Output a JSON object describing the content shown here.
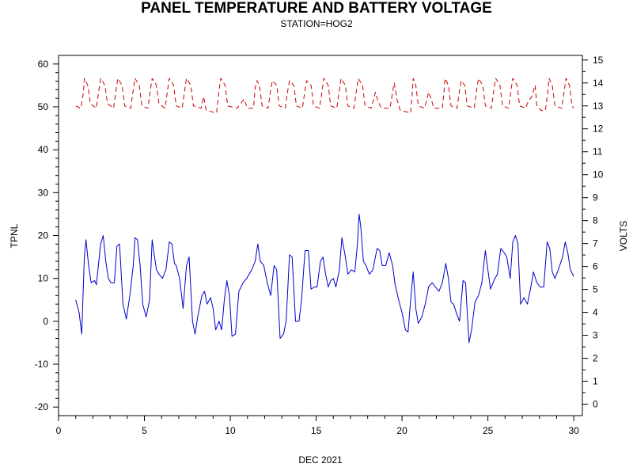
{
  "chart_data": {
    "type": "line",
    "title": "PANEL TEMPERATURE AND BATTERY VOLTAGE",
    "subtitle": "STATION=HOG2",
    "xlabel": "DEC 2021",
    "ylabel_left": "TPNL",
    "ylabel_right": "VOLTS",
    "xlim": [
      0,
      30.5
    ],
    "ylim_left": [
      -22,
      62
    ],
    "ylim_right": [
      -0.5,
      15.2
    ],
    "x_ticks": [
      0,
      5,
      10,
      15,
      20,
      25,
      30
    ],
    "x_tick_labels": [
      "0",
      "5",
      "10",
      "15",
      "20",
      "25",
      "30"
    ],
    "y_left_ticks": [
      -20,
      -10,
      0,
      10,
      20,
      30,
      40,
      50,
      60
    ],
    "y_left_tick_labels": [
      "-20",
      "-10",
      "0",
      "10",
      "20",
      "30",
      "40",
      "50",
      "60"
    ],
    "y_right_ticks": [
      0,
      1,
      2,
      3,
      4,
      5,
      6,
      7,
      8,
      9,
      10,
      11,
      12,
      13,
      14,
      15
    ],
    "y_right_tick_labels": [
      "0",
      "1",
      "2",
      "3",
      "4",
      "5",
      "6",
      "7",
      "8",
      "9",
      "10",
      "11",
      "12",
      "13",
      "14",
      "15"
    ],
    "grid": false,
    "legend": "none",
    "series": [
      {
        "axis": "left",
        "color": "#0000cc",
        "style": "solid",
        "points": [
          [
            1.0,
            5
          ],
          [
            1.2,
            2
          ],
          [
            1.35,
            -3
          ],
          [
            1.5,
            15
          ],
          [
            1.6,
            19
          ],
          [
            1.75,
            13
          ],
          [
            1.9,
            9
          ],
          [
            2.1,
            9.5
          ],
          [
            2.2,
            8.5
          ],
          [
            2.45,
            18
          ],
          [
            2.6,
            20
          ],
          [
            2.75,
            14
          ],
          [
            2.9,
            10
          ],
          [
            3.05,
            9
          ],
          [
            3.25,
            9
          ],
          [
            3.4,
            17.5
          ],
          [
            3.55,
            18
          ],
          [
            3.75,
            4
          ],
          [
            3.95,
            0.5
          ],
          [
            4.15,
            6
          ],
          [
            4.35,
            13
          ],
          [
            4.45,
            19.5
          ],
          [
            4.6,
            19
          ],
          [
            4.75,
            13
          ],
          [
            4.9,
            4
          ],
          [
            5.1,
            1
          ],
          [
            5.3,
            5
          ],
          [
            5.45,
            19
          ],
          [
            5.55,
            16
          ],
          [
            5.7,
            12
          ],
          [
            5.85,
            11
          ],
          [
            6.05,
            10
          ],
          [
            6.25,
            12
          ],
          [
            6.45,
            18.5
          ],
          [
            6.6,
            18
          ],
          [
            6.75,
            13.5
          ],
          [
            6.85,
            13
          ],
          [
            7.05,
            10
          ],
          [
            7.25,
            3
          ],
          [
            7.45,
            13
          ],
          [
            7.6,
            15
          ],
          [
            7.8,
            0
          ],
          [
            7.95,
            -3
          ],
          [
            8.1,
            1
          ],
          [
            8.35,
            6
          ],
          [
            8.5,
            7
          ],
          [
            8.65,
            4
          ],
          [
            8.85,
            5.5
          ],
          [
            9.0,
            3
          ],
          [
            9.15,
            -2
          ],
          [
            9.35,
            0
          ],
          [
            9.5,
            -2
          ],
          [
            9.65,
            5
          ],
          [
            9.8,
            9.5
          ],
          [
            9.95,
            6
          ],
          [
            10.1,
            -3.5
          ],
          [
            10.3,
            -3
          ],
          [
            10.5,
            7
          ],
          [
            10.75,
            9
          ],
          [
            10.95,
            10
          ],
          [
            11.25,
            12
          ],
          [
            11.45,
            14
          ],
          [
            11.6,
            18
          ],
          [
            11.75,
            14
          ],
          [
            11.95,
            13
          ],
          [
            12.15,
            9
          ],
          [
            12.35,
            6
          ],
          [
            12.55,
            13
          ],
          [
            12.7,
            12
          ],
          [
            12.9,
            -4
          ],
          [
            13.1,
            -3
          ],
          [
            13.25,
            0
          ],
          [
            13.45,
            15.5
          ],
          [
            13.6,
            15
          ],
          [
            13.8,
            0
          ],
          [
            14.0,
            0
          ],
          [
            14.15,
            5
          ],
          [
            14.35,
            16.5
          ],
          [
            14.55,
            16.5
          ],
          [
            14.7,
            7.5
          ],
          [
            14.9,
            8
          ],
          [
            15.05,
            8
          ],
          [
            15.25,
            14
          ],
          [
            15.4,
            15
          ],
          [
            15.55,
            11
          ],
          [
            15.7,
            8
          ],
          [
            15.85,
            9.5
          ],
          [
            16.0,
            10
          ],
          [
            16.15,
            8
          ],
          [
            16.35,
            12
          ],
          [
            16.5,
            19.5
          ],
          [
            16.7,
            15
          ],
          [
            16.85,
            11
          ],
          [
            17.05,
            12
          ],
          [
            17.25,
            11.5
          ],
          [
            17.4,
            18
          ],
          [
            17.5,
            25
          ],
          [
            17.6,
            22
          ],
          [
            17.75,
            14
          ],
          [
            17.9,
            13
          ],
          [
            18.1,
            11
          ],
          [
            18.3,
            12
          ],
          [
            18.55,
            17
          ],
          [
            18.7,
            16.5
          ],
          [
            18.85,
            13
          ],
          [
            19.05,
            13
          ],
          [
            19.25,
            16
          ],
          [
            19.45,
            13
          ],
          [
            19.6,
            8.5
          ],
          [
            19.8,
            5
          ],
          [
            20.0,
            2
          ],
          [
            20.2,
            -2
          ],
          [
            20.35,
            -2.5
          ],
          [
            20.5,
            5
          ],
          [
            20.65,
            11.5
          ],
          [
            20.8,
            3
          ],
          [
            20.95,
            -0.5
          ],
          [
            21.15,
            1
          ],
          [
            21.35,
            4
          ],
          [
            21.55,
            8
          ],
          [
            21.75,
            9
          ],
          [
            21.95,
            8
          ],
          [
            22.15,
            7
          ],
          [
            22.35,
            9
          ],
          [
            22.55,
            13.5
          ],
          [
            22.7,
            10
          ],
          [
            22.85,
            4.5
          ],
          [
            23.0,
            4
          ],
          [
            23.2,
            1.5
          ],
          [
            23.35,
            0
          ],
          [
            23.55,
            9.5
          ],
          [
            23.7,
            9
          ],
          [
            23.9,
            -5
          ],
          [
            24.05,
            -2
          ],
          [
            24.25,
            4.5
          ],
          [
            24.45,
            6
          ],
          [
            24.65,
            9
          ],
          [
            24.85,
            16.5
          ],
          [
            25.0,
            12
          ],
          [
            25.15,
            7.5
          ],
          [
            25.35,
            9.5
          ],
          [
            25.55,
            11
          ],
          [
            25.75,
            17
          ],
          [
            25.95,
            16
          ],
          [
            26.1,
            15
          ],
          [
            26.3,
            10
          ],
          [
            26.45,
            18.5
          ],
          [
            26.6,
            20
          ],
          [
            26.75,
            18
          ],
          [
            26.9,
            4
          ],
          [
            27.1,
            5.5
          ],
          [
            27.3,
            4
          ],
          [
            27.5,
            8
          ],
          [
            27.65,
            11.5
          ],
          [
            27.85,
            9
          ],
          [
            28.05,
            8
          ],
          [
            28.25,
            8
          ],
          [
            28.45,
            18.5
          ],
          [
            28.6,
            17
          ],
          [
            28.75,
            11.5
          ],
          [
            28.9,
            10
          ],
          [
            29.1,
            12
          ],
          [
            29.35,
            15
          ],
          [
            29.5,
            18.5
          ],
          [
            29.65,
            16
          ],
          [
            29.8,
            12
          ],
          [
            30.0,
            10.5
          ]
        ]
      },
      {
        "axis": "right",
        "color": "#cc0000",
        "style": "dashed",
        "points": [
          [
            1.0,
            13.0
          ],
          [
            1.3,
            12.9
          ],
          [
            1.45,
            13.6
          ],
          [
            1.5,
            14.2
          ],
          [
            1.7,
            13.9
          ],
          [
            1.85,
            13.1
          ],
          [
            2.2,
            12.9
          ],
          [
            2.35,
            13.7
          ],
          [
            2.45,
            14.2
          ],
          [
            2.7,
            13.9
          ],
          [
            2.85,
            13.1
          ],
          [
            3.2,
            12.9
          ],
          [
            3.35,
            13.7
          ],
          [
            3.45,
            14.2
          ],
          [
            3.7,
            13.9
          ],
          [
            3.85,
            13.0
          ],
          [
            4.2,
            12.9
          ],
          [
            4.35,
            13.7
          ],
          [
            4.45,
            14.2
          ],
          [
            4.7,
            13.9
          ],
          [
            4.85,
            13.0
          ],
          [
            5.2,
            12.9
          ],
          [
            5.35,
            13.7
          ],
          [
            5.45,
            14.2
          ],
          [
            5.7,
            13.9
          ],
          [
            5.85,
            13.1
          ],
          [
            6.2,
            12.9
          ],
          [
            6.35,
            13.7
          ],
          [
            6.45,
            14.2
          ],
          [
            6.7,
            13.9
          ],
          [
            6.85,
            13.0
          ],
          [
            7.2,
            12.9
          ],
          [
            7.35,
            13.7
          ],
          [
            7.45,
            14.2
          ],
          [
            7.7,
            13.9
          ],
          [
            7.85,
            13.0
          ],
          [
            8.3,
            12.9
          ],
          [
            8.45,
            13.4
          ],
          [
            8.6,
            12.8
          ],
          [
            9.2,
            12.7
          ],
          [
            9.35,
            13.7
          ],
          [
            9.45,
            14.2
          ],
          [
            9.7,
            13.9
          ],
          [
            9.85,
            13.0
          ],
          [
            10.4,
            12.9
          ],
          [
            10.6,
            13.1
          ],
          [
            10.8,
            13.3
          ],
          [
            11.0,
            12.9
          ],
          [
            11.35,
            12.9
          ],
          [
            11.45,
            13.8
          ],
          [
            11.55,
            14.1
          ],
          [
            11.7,
            13.9
          ],
          [
            11.85,
            13.0
          ],
          [
            12.2,
            12.9
          ],
          [
            12.35,
            13.7
          ],
          [
            12.45,
            14.1
          ],
          [
            12.7,
            13.9
          ],
          [
            12.85,
            13.0
          ],
          [
            13.2,
            12.9
          ],
          [
            13.35,
            13.7
          ],
          [
            13.45,
            14.1
          ],
          [
            13.7,
            13.9
          ],
          [
            13.85,
            13.0
          ],
          [
            14.2,
            12.9
          ],
          [
            14.35,
            13.7
          ],
          [
            14.45,
            14.1
          ],
          [
            14.7,
            13.9
          ],
          [
            14.85,
            13.0
          ],
          [
            15.2,
            12.9
          ],
          [
            15.35,
            13.7
          ],
          [
            15.45,
            14.2
          ],
          [
            15.7,
            13.9
          ],
          [
            15.85,
            13.0
          ],
          [
            16.2,
            12.9
          ],
          [
            16.35,
            13.7
          ],
          [
            16.45,
            14.2
          ],
          [
            16.7,
            13.9
          ],
          [
            16.85,
            13.0
          ],
          [
            17.2,
            12.9
          ],
          [
            17.35,
            13.7
          ],
          [
            17.45,
            14.2
          ],
          [
            17.7,
            13.9
          ],
          [
            17.85,
            13.0
          ],
          [
            18.2,
            12.9
          ],
          [
            18.35,
            13.3
          ],
          [
            18.45,
            13.6
          ],
          [
            18.6,
            13.2
          ],
          [
            18.8,
            12.9
          ],
          [
            19.3,
            12.9
          ],
          [
            19.45,
            13.6
          ],
          [
            19.55,
            14.0
          ],
          [
            19.7,
            13.3
          ],
          [
            19.9,
            12.8
          ],
          [
            20.5,
            12.7
          ],
          [
            20.6,
            13.6
          ],
          [
            20.65,
            14.2
          ],
          [
            20.8,
            13.9
          ],
          [
            20.95,
            13.0
          ],
          [
            21.3,
            12.9
          ],
          [
            21.45,
            13.3
          ],
          [
            21.55,
            13.6
          ],
          [
            21.7,
            13.3
          ],
          [
            21.85,
            12.9
          ],
          [
            22.35,
            12.9
          ],
          [
            22.45,
            13.7
          ],
          [
            22.5,
            14.2
          ],
          [
            22.7,
            13.9
          ],
          [
            22.85,
            13.0
          ],
          [
            23.2,
            12.9
          ],
          [
            23.35,
            13.7
          ],
          [
            23.45,
            14.1
          ],
          [
            23.65,
            13.9
          ],
          [
            23.8,
            13.0
          ],
          [
            24.2,
            12.9
          ],
          [
            24.35,
            13.7
          ],
          [
            24.45,
            14.2
          ],
          [
            24.7,
            13.9
          ],
          [
            24.85,
            13.0
          ],
          [
            25.2,
            12.9
          ],
          [
            25.35,
            13.7
          ],
          [
            25.45,
            14.2
          ],
          [
            25.7,
            13.9
          ],
          [
            25.85,
            13.0
          ],
          [
            26.2,
            12.9
          ],
          [
            26.35,
            13.7
          ],
          [
            26.45,
            14.2
          ],
          [
            26.7,
            13.9
          ],
          [
            26.85,
            13.0
          ],
          [
            27.2,
            12.9
          ],
          [
            27.35,
            13.2
          ],
          [
            27.55,
            13.4
          ],
          [
            27.75,
            13.9
          ],
          [
            27.85,
            13.0
          ],
          [
            28.1,
            12.8
          ],
          [
            28.35,
            12.8
          ],
          [
            28.5,
            13.7
          ],
          [
            28.55,
            14.2
          ],
          [
            28.75,
            13.9
          ],
          [
            28.9,
            13.0
          ],
          [
            29.3,
            12.9
          ],
          [
            29.45,
            13.7
          ],
          [
            29.55,
            14.2
          ],
          [
            29.75,
            13.9
          ],
          [
            29.9,
            13.0
          ],
          [
            30.0,
            12.9
          ]
        ]
      }
    ]
  }
}
